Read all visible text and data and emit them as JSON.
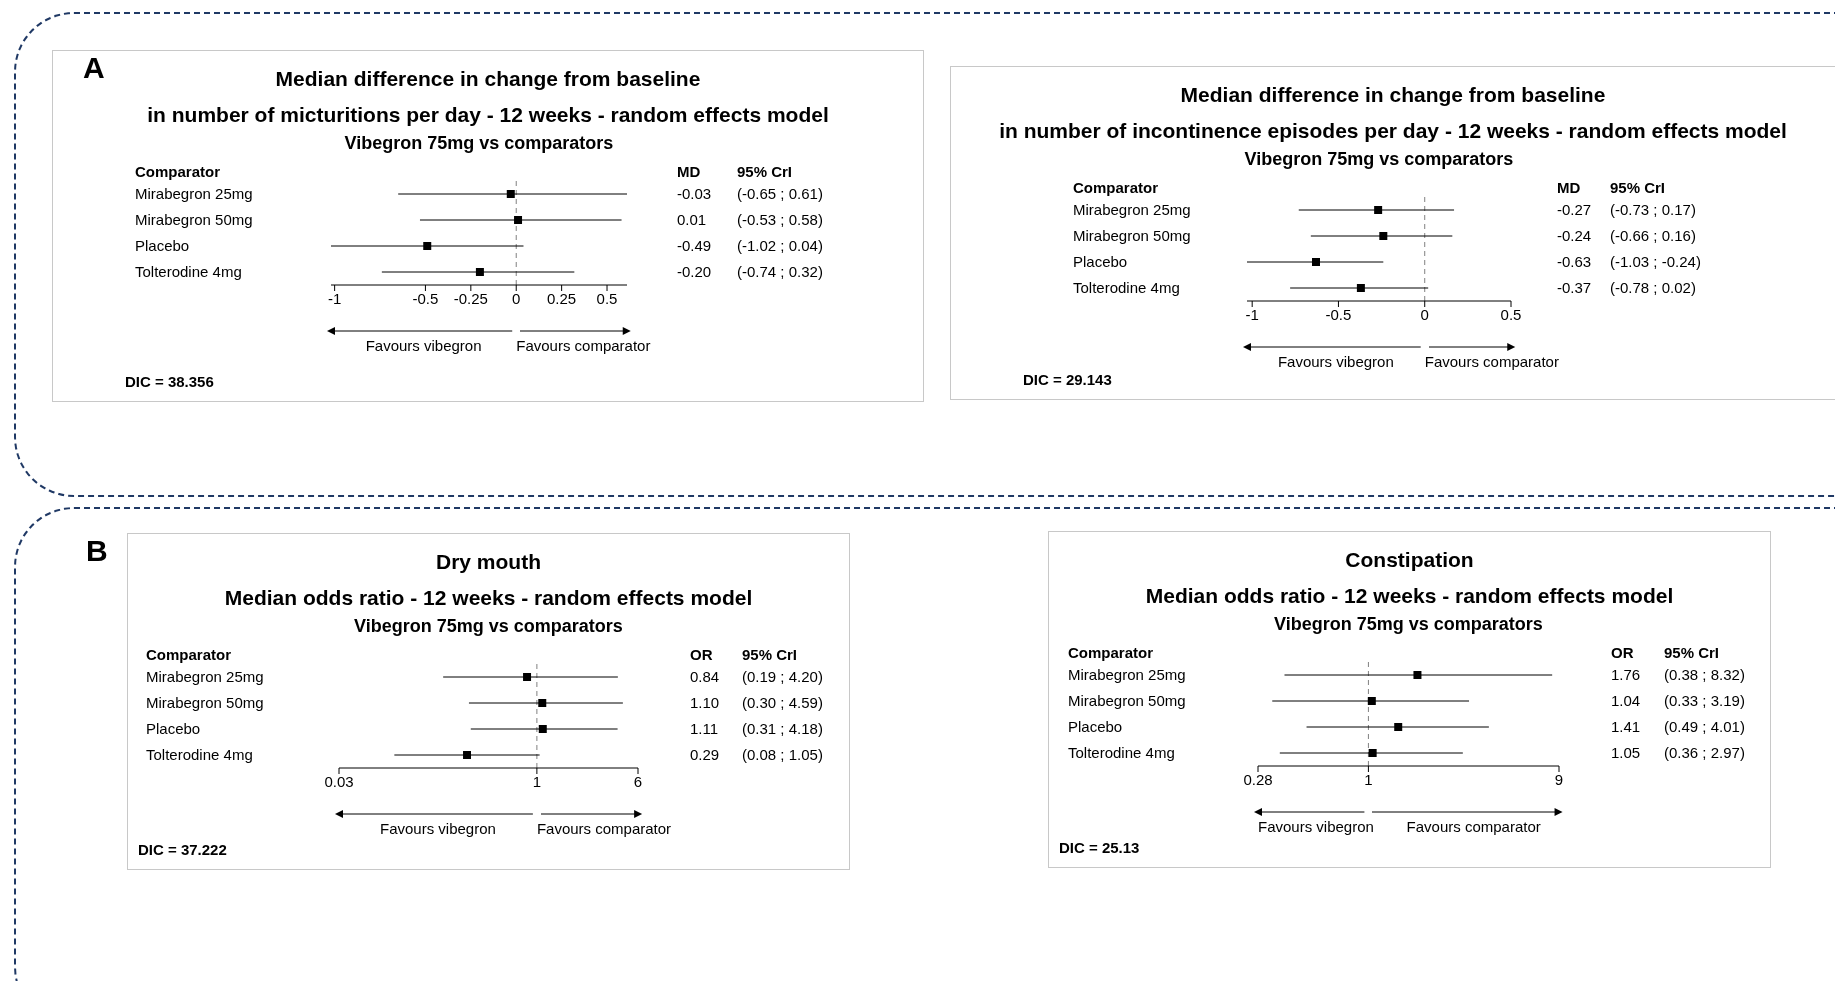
{
  "chart_data": [
    {
      "type": "scatter",
      "title": "Median difference in change from baseline\nin number of micturitions per day - 12 weeks - random effects model",
      "subtitle": "Vibegron 75mg vs comparators",
      "ylabel": "Comparator",
      "categories": [
        "Mirabegron 25mg",
        "Mirabegron 50mg",
        "Placebo",
        "Tolterodine 4mg"
      ],
      "orientation": "horizontal",
      "values": [
        -0.03,
        0.01,
        -0.49,
        -0.2
      ],
      "errors": [
        [
          -0.65,
          0.61
        ],
        [
          -0.53,
          0.58
        ],
        [
          -1.02,
          0.04
        ],
        [
          -0.74,
          0.32
        ]
      ],
      "value_labels": [
        "-0.03",
        "0.01",
        "-0.49",
        "-0.20"
      ],
      "color": "#000000",
      "marker": "square",
      "xlim": [
        -1.02,
        0.61
      ],
      "xticks": [
        -1,
        -0.5,
        -0.25,
        0,
        0.25,
        0.5
      ],
      "ref_lines": [
        {
          "axis": "x",
          "value": 0,
          "line_style": "dashed",
          "color": "#808080"
        }
      ],
      "annotations": [
        "MD",
        "95% CrI",
        "Favours vibegron",
        "Favours comparator",
        "DIC = 38.356",
        "(-0.65 ; 0.61)",
        "(-0.53 ; 0.58)",
        "(-1.02 ; 0.04)",
        "(-0.74 ; 0.32)",
        "A"
      ]
    },
    {
      "type": "scatter",
      "title": "Median difference in change from baseline\nin number of incontinence episodes per day - 12 weeks - random effects model",
      "subtitle": "Vibegron 75mg vs comparators",
      "ylabel": "Comparator",
      "categories": [
        "Mirabegron 25mg",
        "Mirabegron 50mg",
        "Placebo",
        "Tolterodine 4mg"
      ],
      "orientation": "horizontal",
      "values": [
        -0.27,
        -0.24,
        -0.63,
        -0.37
      ],
      "errors": [
        [
          -0.73,
          0.17
        ],
        [
          -0.66,
          0.16
        ],
        [
          -1.03,
          -0.24
        ],
        [
          -0.78,
          0.02
        ]
      ],
      "value_labels": [
        "-0.27",
        "-0.24",
        "-0.63",
        "-0.37"
      ],
      "color": "#000000",
      "marker": "square",
      "xlim": [
        -1.03,
        0.5
      ],
      "xticks": [
        -1,
        -0.5,
        0,
        0.5
      ],
      "ref_lines": [
        {
          "axis": "x",
          "value": 0,
          "line_style": "dashed",
          "color": "#808080"
        }
      ],
      "annotations": [
        "MD",
        "95% CrI",
        "Favours vibegron",
        "Favours comparator",
        "DIC = 29.143",
        "(-0.73 ; 0.17)",
        "(-0.66 ; 0.16)",
        "(-1.03 ; -0.24)",
        "(-0.78 ; 0.02)"
      ]
    },
    {
      "type": "scatter",
      "title": "Dry mouth\nMedian odds ratio - 12 weeks - random effects model",
      "subtitle": "Vibegron 75mg vs comparators",
      "ylabel": "Comparator",
      "categories": [
        "Mirabegron 25mg",
        "Mirabegron 50mg",
        "Placebo",
        "Tolterodine 4mg"
      ],
      "orientation": "horizontal",
      "values": [
        0.84,
        1.1,
        1.11,
        0.29
      ],
      "errors": [
        [
          0.19,
          4.2
        ],
        [
          0.3,
          4.59
        ],
        [
          0.31,
          4.18
        ],
        [
          0.08,
          1.05
        ]
      ],
      "value_labels": [
        "0.84",
        "1.10",
        "1.11",
        "0.29"
      ],
      "color": "#000000",
      "marker": "square",
      "log": "x",
      "xlim": [
        0.03,
        6
      ],
      "xticks": [
        0.03,
        1,
        6
      ],
      "ref_lines": [
        {
          "axis": "x",
          "value": 1,
          "line_style": "dashed",
          "color": "#808080"
        }
      ],
      "annotations": [
        "OR",
        "95% CrI",
        "Favours vibegron",
        "Favours comparator",
        "DIC = 37.222",
        "(0.19 ; 4.20)",
        "(0.30 ; 4.59)",
        "(0.31 ; 4.18)",
        "(0.08 ; 1.05)",
        "B"
      ]
    },
    {
      "type": "scatter",
      "title": "Constipation\nMedian odds ratio - 12 weeks - random effects model",
      "subtitle": "Vibegron 75mg vs comparators",
      "ylabel": "Comparator",
      "categories": [
        "Mirabegron 25mg",
        "Mirabegron 50mg",
        "Placebo",
        "Tolterodine 4mg"
      ],
      "orientation": "horizontal",
      "values": [
        1.76,
        1.04,
        1.41,
        1.05
      ],
      "errors": [
        [
          0.38,
          8.32
        ],
        [
          0.33,
          3.19
        ],
        [
          0.49,
          4.01
        ],
        [
          0.36,
          2.97
        ]
      ],
      "value_labels": [
        "1.76",
        "1.04",
        "1.41",
        "1.05"
      ],
      "color": "#000000",
      "marker": "square",
      "log": "x",
      "xlim": [
        0.28,
        9
      ],
      "xticks": [
        0.28,
        1,
        9
      ],
      "ref_lines": [
        {
          "axis": "x",
          "value": 1,
          "line_style": "dashed",
          "color": "#808080"
        }
      ],
      "annotations": [
        "OR",
        "95% CrI",
        "Favours vibegron",
        "Favours comparator",
        "DIC = 25.13",
        "(0.38 ; 8.32)",
        "(0.33 ; 3.19)",
        "(0.49 ; 4.01)",
        "(0.36 ; 2.97)"
      ]
    }
  ]
}
